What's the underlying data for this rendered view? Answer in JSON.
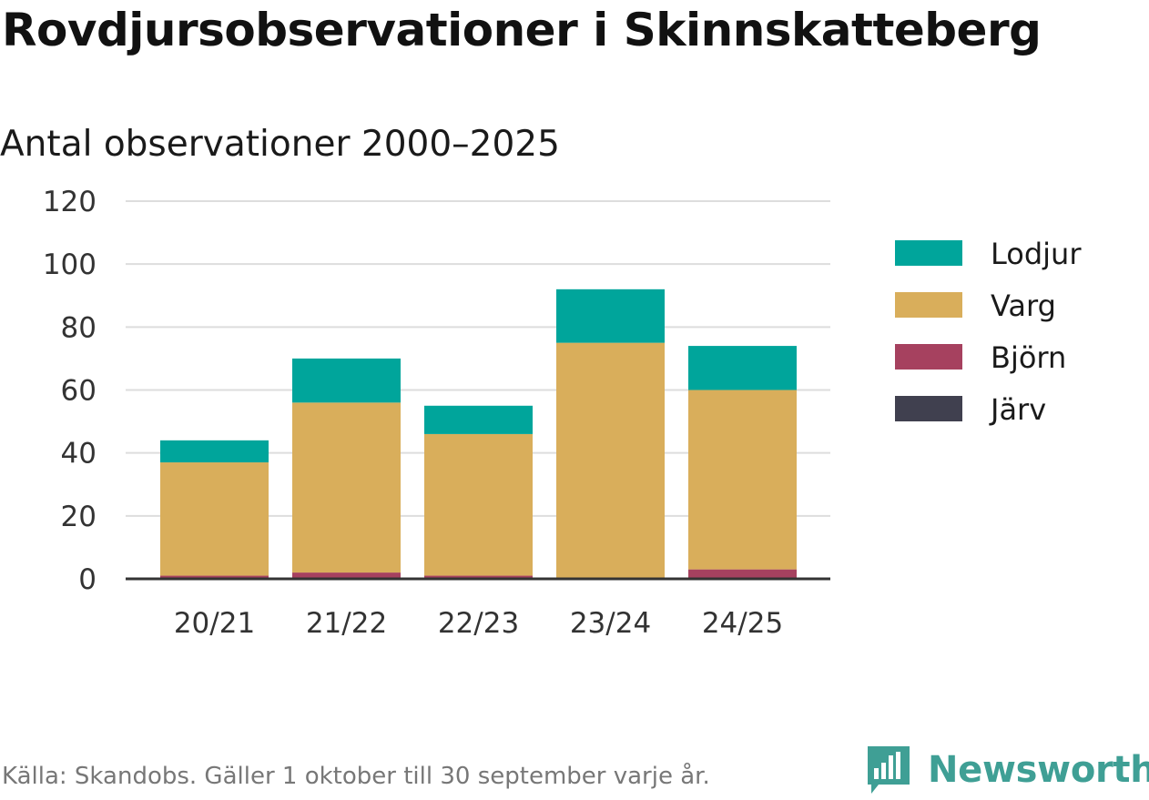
{
  "title": "Rovdjursobservationer i Skinnskatteberg",
  "subtitle": "Antal observationer 2000–2025",
  "source": "Källa: Skandobs. Gäller 1 oktober till 30 september varje år.",
  "brand": {
    "name": "Newsworthy",
    "icon": "newsworthy-logo-icon",
    "color": "#3f9f95"
  },
  "chart_data": {
    "type": "bar",
    "stacked": true,
    "title": "Antal observationer 2000–2025",
    "xlabel": "",
    "ylabel": "",
    "ylim": [
      0,
      120
    ],
    "yticks": [
      0,
      20,
      40,
      60,
      80,
      100,
      120
    ],
    "grid": true,
    "legend_position": "right",
    "categories": [
      "20/21",
      "21/22",
      "22/23",
      "23/24",
      "24/25"
    ],
    "series": [
      {
        "name": "Järv",
        "color": "#40404f",
        "values": [
          0,
          0,
          0,
          0,
          0
        ]
      },
      {
        "name": "Björn",
        "color": "#a6415f",
        "values": [
          1,
          2,
          1,
          0,
          3
        ]
      },
      {
        "name": "Varg",
        "color": "#d9ae5b",
        "values": [
          36,
          54,
          45,
          75,
          57
        ]
      },
      {
        "name": "Lodjur",
        "color": "#00a59b",
        "values": [
          7,
          14,
          9,
          17,
          14
        ]
      }
    ],
    "legend_order": [
      "Lodjur",
      "Varg",
      "Björn",
      "Järv"
    ]
  }
}
